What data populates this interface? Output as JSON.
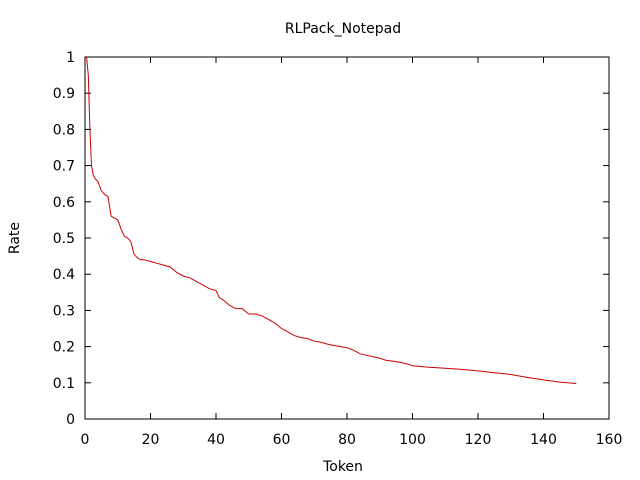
{
  "chart_data": {
    "type": "line",
    "title": "RLPack_Notepad",
    "xlabel": "Token",
    "ylabel": "Rate",
    "xlim": [
      0,
      160
    ],
    "ylim": [
      0,
      1
    ],
    "x_ticks": [
      0,
      20,
      40,
      60,
      80,
      100,
      120,
      140,
      160
    ],
    "y_ticks": [
      0,
      0.1,
      0.2,
      0.3,
      0.4,
      0.5,
      0.6,
      0.7,
      0.8,
      0.9,
      1
    ],
    "x_tick_labels": [
      "0",
      "20",
      "40",
      "60",
      "80",
      "100",
      "120",
      "140",
      "160"
    ],
    "y_tick_labels": [
      "0",
      "0.1",
      "0.2",
      "0.3",
      "0.4",
      "0.5",
      "0.6",
      "0.7",
      "0.8",
      "0.9",
      "1"
    ],
    "grid": false,
    "legend": "none",
    "series": [
      {
        "color": "#cc0000",
        "x": [
          0.5,
          1,
          1.5,
          2,
          2.5,
          3,
          4,
          5,
          6,
          7,
          8,
          9,
          10,
          11,
          12,
          13,
          14,
          15,
          16,
          17,
          18,
          20,
          22,
          24,
          26,
          28,
          30,
          32,
          34,
          36,
          38,
          40,
          41,
          42,
          44,
          46,
          48,
          50,
          52,
          54,
          56,
          58,
          60,
          62,
          64,
          66,
          68,
          70,
          72,
          74,
          76,
          78,
          80,
          82,
          84,
          86,
          88,
          90,
          92,
          94,
          96,
          98,
          100,
          105,
          110,
          115,
          120,
          125,
          130,
          135,
          140,
          145,
          150
        ],
        "y": [
          1.0,
          0.95,
          0.8,
          0.7,
          0.675,
          0.665,
          0.655,
          0.63,
          0.62,
          0.615,
          0.56,
          0.555,
          0.55,
          0.525,
          0.505,
          0.5,
          0.49,
          0.455,
          0.445,
          0.44,
          0.44,
          0.435,
          0.43,
          0.425,
          0.42,
          0.405,
          0.395,
          0.39,
          0.38,
          0.37,
          0.36,
          0.355,
          0.335,
          0.33,
          0.315,
          0.305,
          0.305,
          0.29,
          0.29,
          0.285,
          0.275,
          0.265,
          0.25,
          0.24,
          0.23,
          0.225,
          0.222,
          0.215,
          0.212,
          0.207,
          0.203,
          0.2,
          0.197,
          0.19,
          0.18,
          0.176,
          0.172,
          0.168,
          0.162,
          0.16,
          0.157,
          0.153,
          0.147,
          0.143,
          0.14,
          0.137,
          0.133,
          0.128,
          0.123,
          0.115,
          0.108,
          0.102,
          0.098
        ]
      }
    ]
  }
}
